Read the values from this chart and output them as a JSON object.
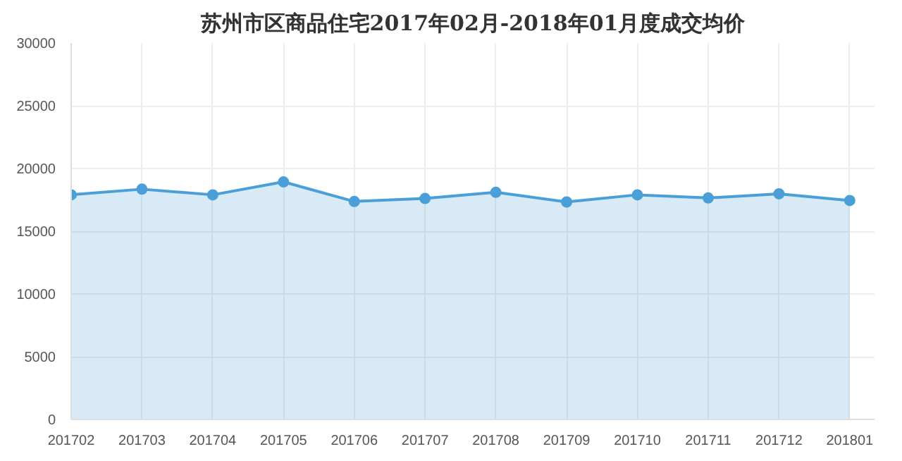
{
  "chart_data": {
    "type": "area",
    "title": "苏州市区商品住宅2017年02月-2018年01月度成交均价",
    "categories": [
      "201702",
      "201703",
      "201704",
      "201705",
      "201706",
      "201707",
      "201708",
      "201709",
      "201710",
      "201711",
      "201712",
      "201801"
    ],
    "series": [
      {
        "color": "#4a9fd8",
        "values": [
          17900,
          18350,
          17900,
          18930,
          17370,
          17610,
          18100,
          17330,
          17900,
          17650,
          17980,
          17450
        ]
      }
    ],
    "ylim": [
      0,
      30000
    ],
    "yticks": [
      0,
      5000,
      10000,
      15000,
      20000,
      25000,
      30000
    ],
    "grid": true,
    "marker": "circle"
  }
}
